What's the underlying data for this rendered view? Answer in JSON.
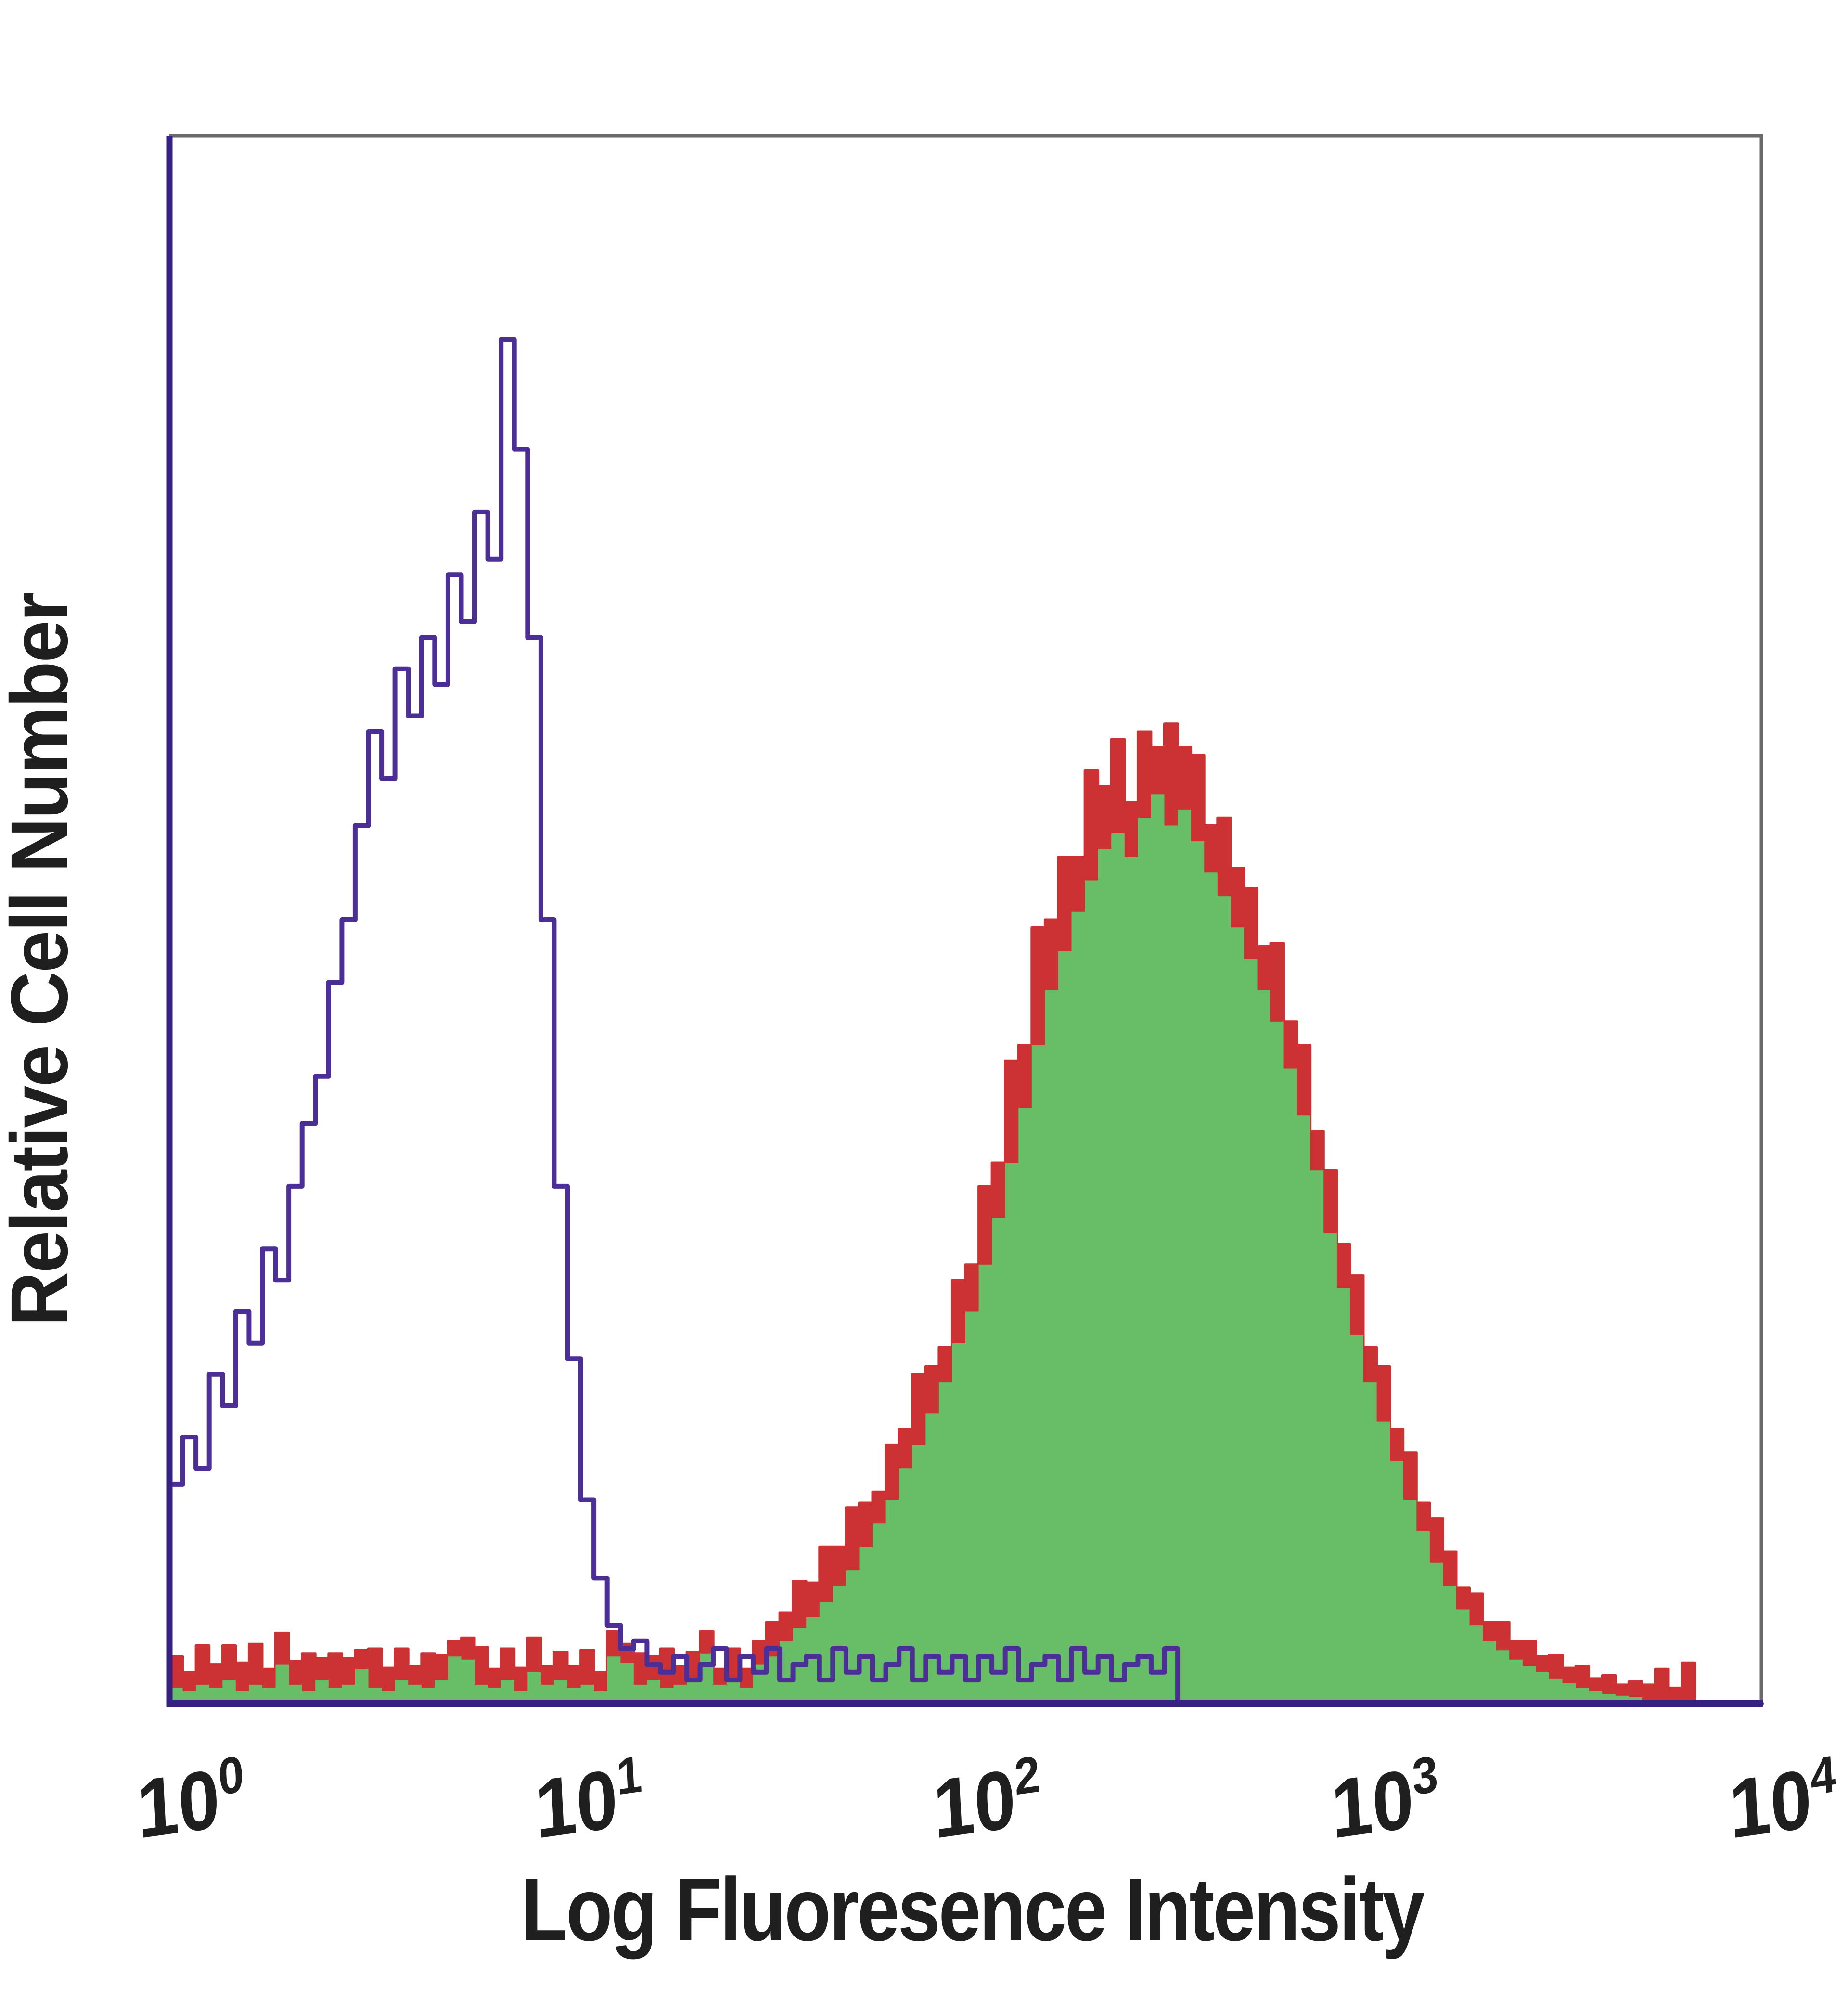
{
  "chart_data": {
    "type": "area",
    "subtype": "flow-cytometry-histogram-overlay",
    "title": "",
    "xlabel": "Log Fluoresence Intensity",
    "ylabel": "Relative Cell Number",
    "x_scale": "log10",
    "x_range": [
      1,
      10000
    ],
    "y_range_relative": [
      0,
      1
    ],
    "grid": false,
    "legend": null,
    "x_ticks": [
      {
        "base": "10",
        "exp": "0"
      },
      {
        "base": "10",
        "exp": "1"
      },
      {
        "base": "10",
        "exp": "2"
      },
      {
        "base": "10",
        "exp": "3"
      },
      {
        "base": "10",
        "exp": "4"
      }
    ],
    "y_ticks": [],
    "frame": {
      "top_right_color": "#6a6a6a",
      "axis_color": "#372180"
    },
    "text_color": "#1f1f1f",
    "series": [
      {
        "name": "control-open-histogram",
        "style": "open",
        "line_color": "#4b2f96",
        "peak_x": 7,
        "peak_height": 0.87,
        "bins_log_range": [
          0,
          4
        ],
        "bins": [
          0.14,
          0.17,
          0.15,
          0.21,
          0.19,
          0.25,
          0.23,
          0.29,
          0.27,
          0.33,
          0.37,
          0.4,
          0.46,
          0.5,
          0.56,
          0.62,
          0.59,
          0.66,
          0.63,
          0.68,
          0.65,
          0.72,
          0.69,
          0.76,
          0.73,
          0.87,
          0.8,
          0.68,
          0.5,
          0.33,
          0.22,
          0.13,
          0.08,
          0.05,
          0.035,
          0.04,
          0.025,
          0.02,
          0.03,
          0.015,
          0.025,
          0.035,
          0.015,
          0.03,
          0.02,
          0.035,
          0.015,
          0.025,
          0.03,
          0.015,
          0.035,
          0.02,
          0.03,
          0.015,
          0.025,
          0.035,
          0.015,
          0.03,
          0.02,
          0.03,
          0.015,
          0.03,
          0.02,
          0.035,
          0.015,
          0.025,
          0.03,
          0.015,
          0.035,
          0.02,
          0.03,
          0.015,
          0.025,
          0.03,
          0.02,
          0.035,
          0,
          0,
          0,
          0,
          0,
          0,
          0,
          0,
          0,
          0,
          0,
          0,
          0,
          0,
          0,
          0,
          0,
          0,
          0,
          0,
          0,
          0,
          0,
          0,
          0,
          0,
          0,
          0,
          0,
          0,
          0,
          0,
          0,
          0,
          0,
          0,
          0,
          0,
          0,
          0,
          0,
          0,
          0,
          0
        ]
      },
      {
        "name": "stained-filled-histogram",
        "style": "filled",
        "fill_color": "#67be66",
        "edge_color": "#cc3233",
        "peak_x": 300,
        "peak_height": 0.62,
        "bins_log_range": [
          0,
          4
        ],
        "bins": [
          0.01,
          0.008,
          0.012,
          0.01,
          0.015,
          0.008,
          0.012,
          0.01,
          0.025,
          0.012,
          0.008,
          0.015,
          0.01,
          0.012,
          0.022,
          0.01,
          0.008,
          0.015,
          0.012,
          0.01,
          0.015,
          0.03,
          0.028,
          0.012,
          0.01,
          0.015,
          0.008,
          0.02,
          0.012,
          0.015,
          0.01,
          0.012,
          0.008,
          0.03,
          0.026,
          0.012,
          0.015,
          0.01,
          0.012,
          0.015,
          0.032,
          0.012,
          0.015,
          0.01,
          0.025,
          0.03,
          0.04,
          0.048,
          0.055,
          0.065,
          0.075,
          0.085,
          0.1,
          0.115,
          0.13,
          0.15,
          0.165,
          0.185,
          0.205,
          0.23,
          0.25,
          0.28,
          0.31,
          0.345,
          0.38,
          0.42,
          0.455,
          0.48,
          0.505,
          0.525,
          0.545,
          0.555,
          0.54,
          0.565,
          0.58,
          0.56,
          0.57,
          0.55,
          0.53,
          0.515,
          0.495,
          0.475,
          0.455,
          0.435,
          0.405,
          0.375,
          0.34,
          0.3,
          0.265,
          0.235,
          0.205,
          0.18,
          0.155,
          0.13,
          0.11,
          0.09,
          0.075,
          0.06,
          0.05,
          0.04,
          0.034,
          0.028,
          0.024,
          0.02,
          0.016,
          0.013,
          0.01,
          0.008,
          0.006,
          0.005,
          0.004,
          0,
          0,
          0,
          0,
          0,
          0,
          0,
          0,
          0
        ],
        "edge_extra": [
          0.02,
          0.012,
          0.025,
          0.015,
          0.022,
          0.018,
          0.026,
          0.012,
          0.02,
          0.015,
          0.024,
          0.014,
          0.022,
          0.017,
          0.012,
          0.025,
          0.015,
          0.02,
          0.012,
          0.022,
          0.016,
          0.01,
          0.014,
          0.024,
          0.012,
          0.02,
          0.015,
          0.022,
          0.012,
          0.018,
          0.014,
          0.022,
          0.012,
          0.016,
          0.012,
          0.02,
          0.015,
          0.025,
          0.012,
          0.018,
          0.014,
          0.01,
          0.02,
          0.012,
          0.015,
          0.022,
          0.018,
          0.03,
          0.022,
          0.035,
          0.025,
          0.04,
          0.028,
          0.02,
          0.035,
          0.025,
          0.045,
          0.03,
          0.022,
          0.04,
          0.03,
          0.05,
          0.035,
          0.065,
          0.04,
          0.075,
          0.045,
          0.06,
          0.035,
          0.07,
          0.04,
          0.06,
          0.035,
          0.055,
          0.03,
          0.065,
          0.04,
          0.055,
          0.03,
          0.05,
          0.038,
          0.045,
          0.028,
          0.05,
          0.03,
          0.045,
          0.025,
          0.04,
          0.028,
          0.038,
          0.022,
          0.035,
          0.02,
          0.03,
          0.018,
          0.028,
          0.022,
          0.014,
          0.02,
          0.012,
          0.018,
          0.012,
          0.016,
          0.01,
          0.015,
          0.01,
          0.014,
          0.008,
          0.012,
          0.007,
          0.01,
          0.012,
          0.022,
          0.01,
          0.026,
          0,
          0,
          0,
          0,
          0
        ]
      }
    ]
  }
}
